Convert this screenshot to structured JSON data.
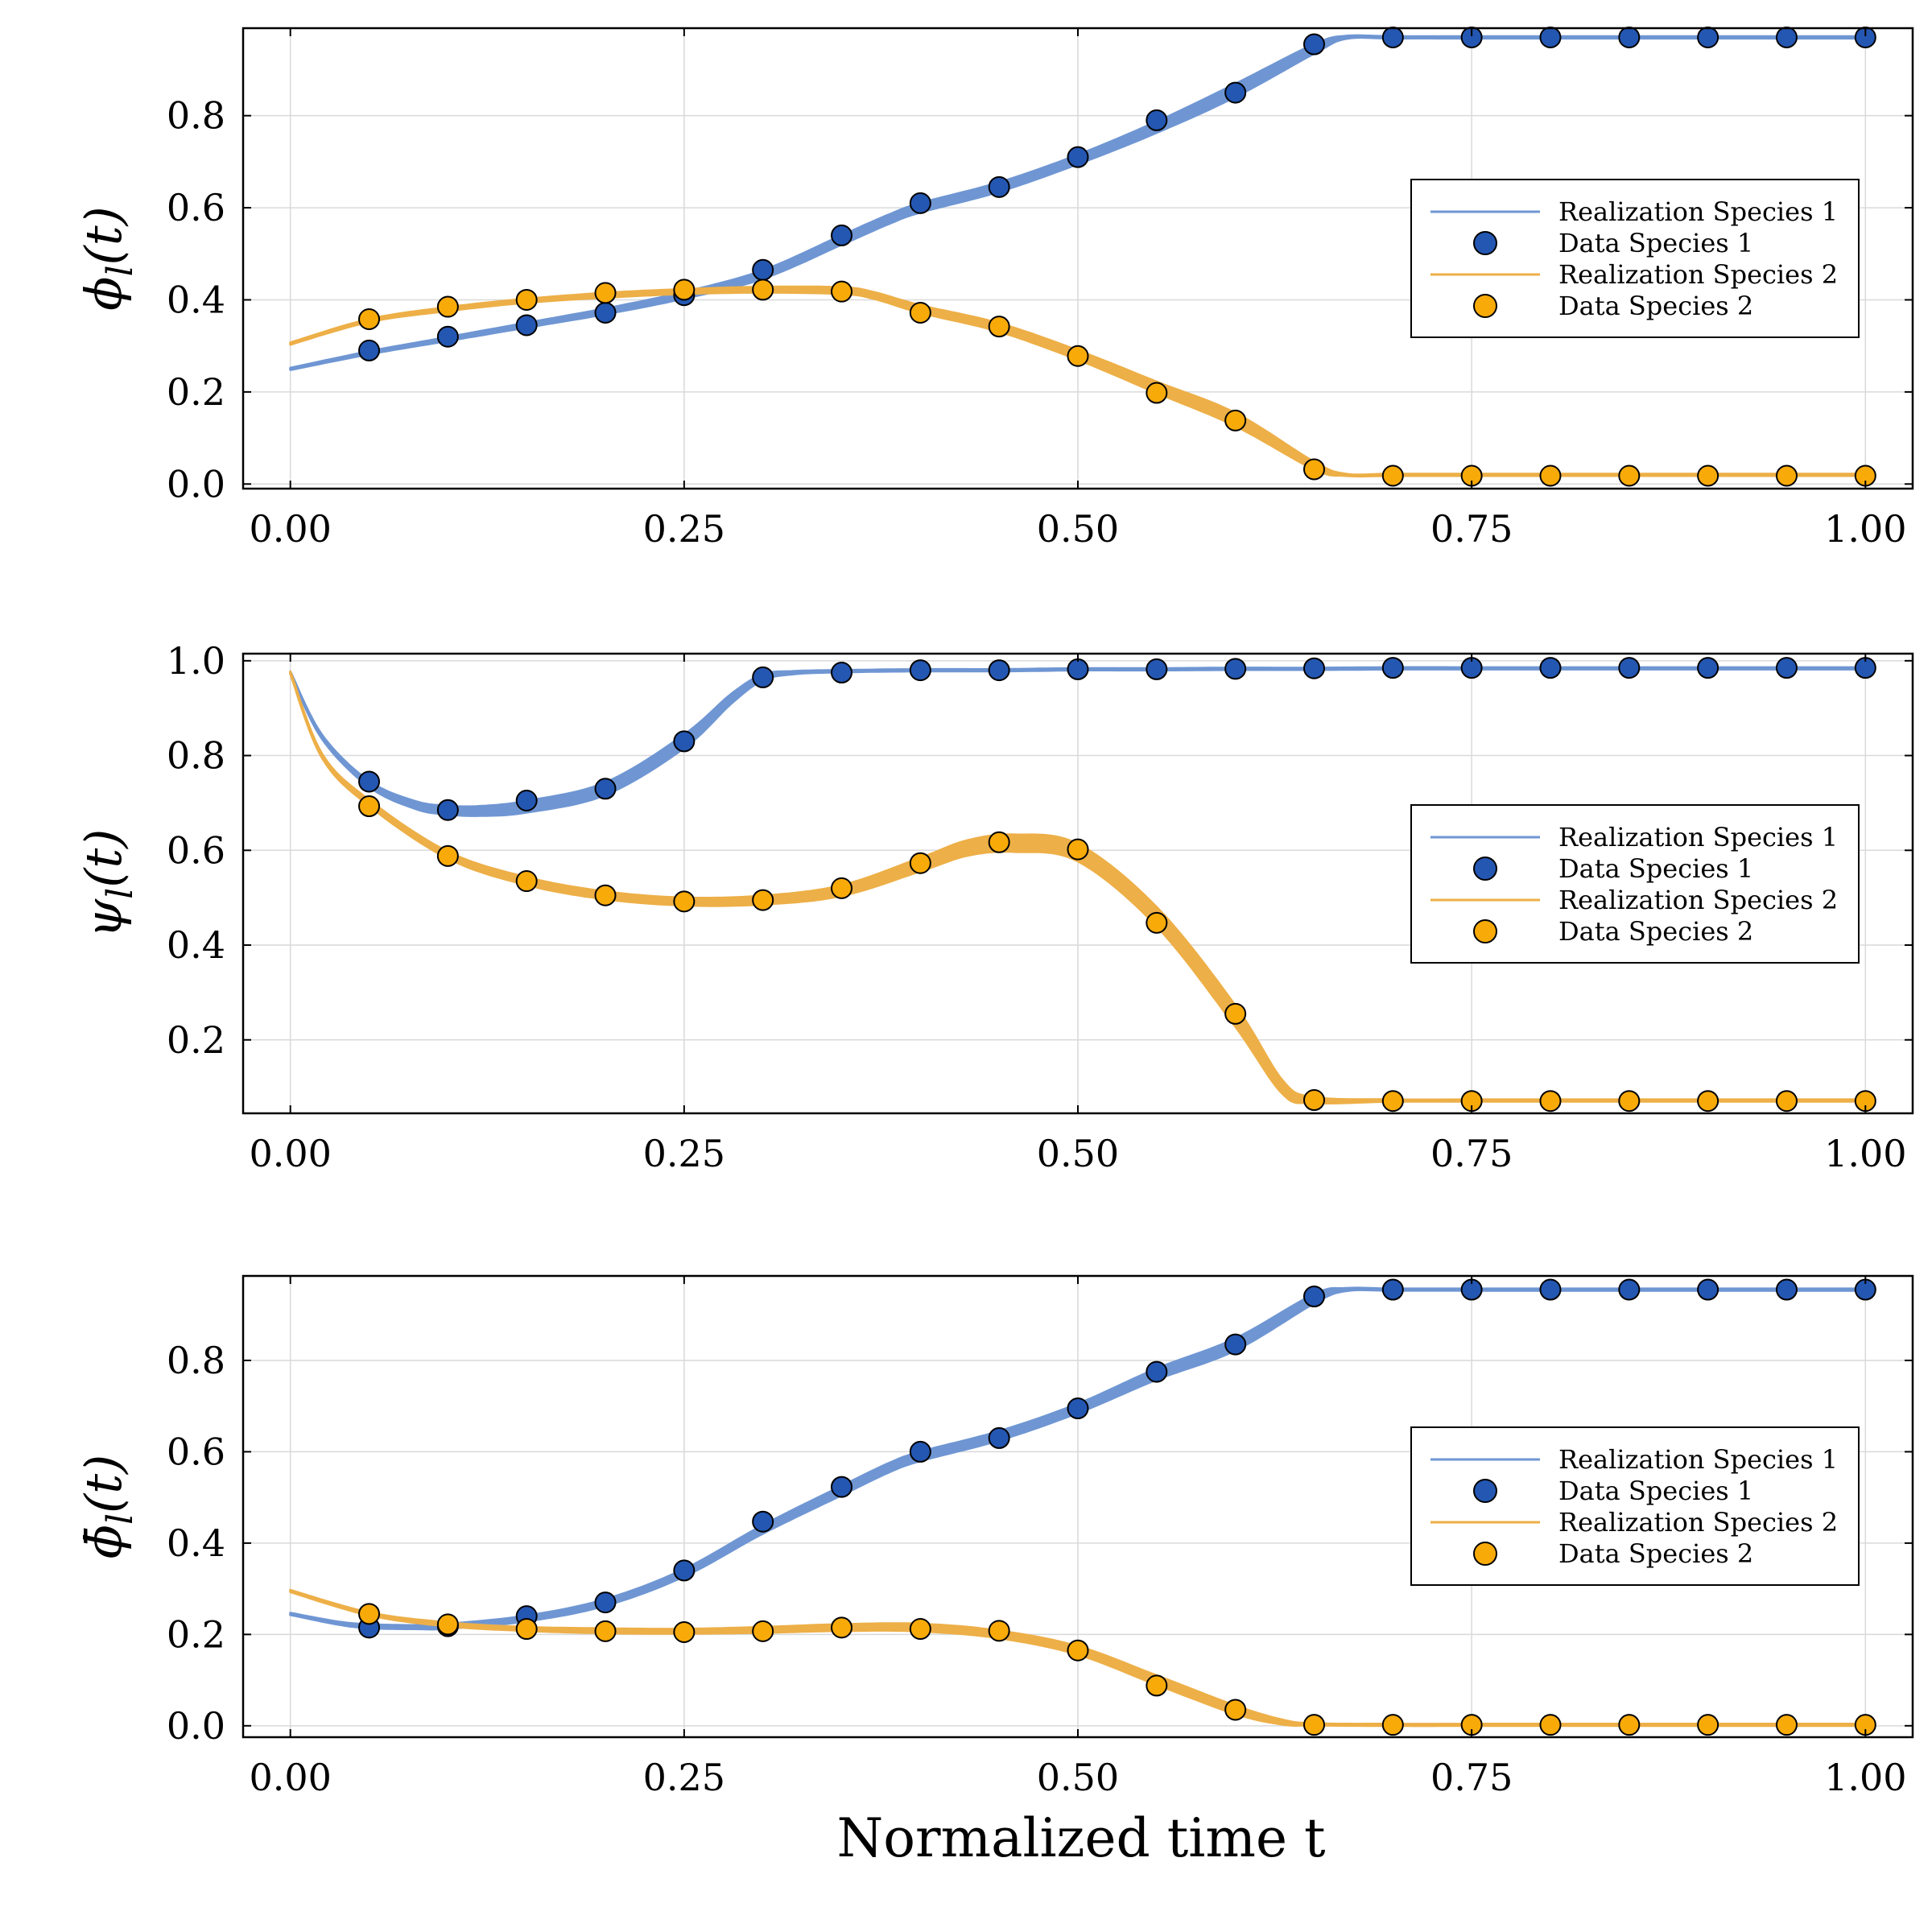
{
  "figure": {
    "xlabel": "Normalized time t",
    "colors": {
      "series1_line": "#6f96d3",
      "series1_marker": "#2457b2",
      "series2_line": "#edaf47",
      "series2_marker": "#f8aa08",
      "grid": "#d9d9d9",
      "frame": "#000000"
    }
  },
  "chart_data": [
    {
      "type": "line",
      "ylabel": "ϕ_l(t)",
      "xlim": [
        -0.03,
        1.03
      ],
      "ylim": [
        -0.01,
        0.99
      ],
      "xticks": [
        0.0,
        0.25,
        0.5,
        0.75,
        1.0
      ],
      "xtick_labels": [
        "0.00",
        "0.25",
        "0.50",
        "0.75",
        "1.00"
      ],
      "yticks": [
        0.0,
        0.2,
        0.4,
        0.6,
        0.8
      ],
      "ytick_labels": [
        "0.0",
        "0.2",
        "0.4",
        "0.6",
        "0.8"
      ],
      "grid": true,
      "legend": {
        "placement": "right",
        "entries": [
          "Realization Species 1",
          "Data Species 1",
          "Realization Species 2",
          "Data Species 2"
        ]
      },
      "series": [
        {
          "name": "Realization Species 1",
          "kind": "band",
          "x": [
            0,
            0.05,
            0.1,
            0.15,
            0.2,
            0.25,
            0.3,
            0.35,
            0.38,
            0.4,
            0.45,
            0.5,
            0.55,
            0.6,
            0.65,
            0.67,
            0.7,
            0.75,
            0.8,
            0.85,
            0.9,
            0.95,
            1.0
          ],
          "y": [
            0.25,
            0.285,
            0.315,
            0.345,
            0.375,
            0.41,
            0.455,
            0.53,
            0.575,
            0.6,
            0.645,
            0.705,
            0.775,
            0.855,
            0.945,
            0.97,
            0.97,
            0.97,
            0.97,
            0.97,
            0.97,
            0.97,
            0.97
          ],
          "spread": [
            0.002,
            0.003,
            0.004,
            0.005,
            0.006,
            0.007,
            0.009,
            0.01,
            0.01,
            0.01,
            0.01,
            0.01,
            0.012,
            0.014,
            0.01,
            0.003,
            0.002,
            0.002,
            0.002,
            0.002,
            0.002,
            0.002,
            0.002
          ]
        },
        {
          "name": "Data Species 1",
          "kind": "markers",
          "x": [
            0.05,
            0.1,
            0.15,
            0.2,
            0.25,
            0.3,
            0.35,
            0.4,
            0.45,
            0.5,
            0.55,
            0.6,
            0.65,
            0.7,
            0.75,
            0.8,
            0.85,
            0.9,
            0.95,
            1.0
          ],
          "y": [
            0.29,
            0.32,
            0.345,
            0.372,
            0.41,
            0.465,
            0.54,
            0.61,
            0.645,
            0.71,
            0.79,
            0.85,
            0.955,
            0.97,
            0.97,
            0.97,
            0.97,
            0.97,
            0.97,
            0.97
          ]
        },
        {
          "name": "Realization Species 2",
          "kind": "band",
          "x": [
            0,
            0.05,
            0.1,
            0.15,
            0.2,
            0.25,
            0.3,
            0.35,
            0.37,
            0.4,
            0.45,
            0.5,
            0.55,
            0.6,
            0.65,
            0.67,
            0.7,
            0.75,
            0.8,
            0.85,
            0.9,
            0.95,
            1.0
          ],
          "y": [
            0.305,
            0.355,
            0.38,
            0.398,
            0.41,
            0.418,
            0.422,
            0.42,
            0.41,
            0.38,
            0.34,
            0.28,
            0.21,
            0.14,
            0.04,
            0.02,
            0.02,
            0.02,
            0.02,
            0.02,
            0.02,
            0.02,
            0.02
          ],
          "spread": [
            0.002,
            0.003,
            0.004,
            0.004,
            0.005,
            0.005,
            0.006,
            0.007,
            0.007,
            0.008,
            0.009,
            0.01,
            0.012,
            0.014,
            0.008,
            0.002,
            0.002,
            0.002,
            0.002,
            0.002,
            0.002,
            0.002,
            0.002
          ]
        },
        {
          "name": "Data Species 2",
          "kind": "markers",
          "x": [
            0.05,
            0.1,
            0.15,
            0.2,
            0.25,
            0.3,
            0.35,
            0.4,
            0.45,
            0.5,
            0.55,
            0.6,
            0.65,
            0.7,
            0.75,
            0.8,
            0.85,
            0.9,
            0.95,
            1.0
          ],
          "y": [
            0.358,
            0.385,
            0.4,
            0.415,
            0.422,
            0.422,
            0.418,
            0.372,
            0.342,
            0.278,
            0.198,
            0.138,
            0.032,
            0.018,
            0.018,
            0.018,
            0.018,
            0.018,
            0.018,
            0.018
          ]
        }
      ]
    },
    {
      "type": "line",
      "ylabel": "ψ_l(t)",
      "xlim": [
        -0.03,
        1.03
      ],
      "ylim": [
        0.045,
        1.015
      ],
      "xticks": [
        0.0,
        0.25,
        0.5,
        0.75,
        1.0
      ],
      "xtick_labels": [
        "0.00",
        "0.25",
        "0.50",
        "0.75",
        "1.00"
      ],
      "yticks": [
        0.2,
        0.4,
        0.6,
        0.8,
        1.0
      ],
      "ytick_labels": [
        "0.2",
        "0.4",
        "0.6",
        "0.8",
        "1.0"
      ],
      "grid": true,
      "legend": {
        "placement": "right",
        "entries": [
          "Realization Species 1",
          "Data Species 1",
          "Realization Species 2",
          "Data Species 2"
        ]
      },
      "series": [
        {
          "name": "Realization Species 1",
          "kind": "band",
          "x": [
            0,
            0.02,
            0.05,
            0.08,
            0.1,
            0.12,
            0.15,
            0.2,
            0.25,
            0.28,
            0.3,
            0.32,
            0.35,
            0.4,
            0.45,
            0.5,
            0.55,
            0.6,
            0.65,
            0.7,
            0.75,
            0.8,
            0.85,
            0.9,
            0.95,
            1.0
          ],
          "y": [
            0.975,
            0.84,
            0.74,
            0.695,
            0.685,
            0.683,
            0.692,
            0.73,
            0.83,
            0.92,
            0.965,
            0.975,
            0.978,
            0.98,
            0.98,
            0.982,
            0.982,
            0.983,
            0.983,
            0.984,
            0.984,
            0.984,
            0.984,
            0.984,
            0.984,
            0.984
          ],
          "spread": [
            0.002,
            0.004,
            0.006,
            0.008,
            0.009,
            0.01,
            0.012,
            0.013,
            0.014,
            0.01,
            0.006,
            0.003,
            0.002,
            0.002,
            0.002,
            0.002,
            0.002,
            0.002,
            0.002,
            0.002,
            0.002,
            0.002,
            0.002,
            0.002,
            0.002,
            0.002
          ]
        },
        {
          "name": "Data Species 1",
          "kind": "markers",
          "x": [
            0.05,
            0.1,
            0.15,
            0.2,
            0.25,
            0.3,
            0.35,
            0.4,
            0.45,
            0.5,
            0.55,
            0.6,
            0.65,
            0.7,
            0.75,
            0.8,
            0.85,
            0.9,
            0.95,
            1.0
          ],
          "y": [
            0.745,
            0.685,
            0.705,
            0.73,
            0.83,
            0.965,
            0.975,
            0.98,
            0.98,
            0.982,
            0.982,
            0.983,
            0.984,
            0.985,
            0.985,
            0.985,
            0.985,
            0.985,
            0.985,
            0.985
          ]
        },
        {
          "name": "Realization Species 2",
          "kind": "band",
          "x": [
            0,
            0.02,
            0.05,
            0.1,
            0.15,
            0.2,
            0.25,
            0.3,
            0.35,
            0.4,
            0.43,
            0.46,
            0.5,
            0.55,
            0.6,
            0.63,
            0.65,
            0.7,
            0.75,
            0.8,
            0.85,
            0.9,
            0.95,
            1.0
          ],
          "y": [
            0.975,
            0.8,
            0.7,
            0.59,
            0.535,
            0.505,
            0.492,
            0.495,
            0.515,
            0.57,
            0.605,
            0.615,
            0.595,
            0.46,
            0.25,
            0.1,
            0.073,
            0.072,
            0.072,
            0.072,
            0.072,
            0.072,
            0.072,
            0.072
          ],
          "spread": [
            0.002,
            0.004,
            0.006,
            0.007,
            0.008,
            0.008,
            0.008,
            0.009,
            0.011,
            0.014,
            0.016,
            0.018,
            0.018,
            0.02,
            0.022,
            0.014,
            0.006,
            0.002,
            0.002,
            0.002,
            0.002,
            0.002,
            0.002,
            0.002
          ]
        },
        {
          "name": "Data Species 2",
          "kind": "markers",
          "x": [
            0.05,
            0.1,
            0.15,
            0.2,
            0.25,
            0.3,
            0.35,
            0.4,
            0.45,
            0.5,
            0.55,
            0.6,
            0.65,
            0.7,
            0.75,
            0.8,
            0.85,
            0.9,
            0.95,
            1.0
          ],
          "y": [
            0.693,
            0.588,
            0.535,
            0.505,
            0.492,
            0.495,
            0.52,
            0.573,
            0.617,
            0.602,
            0.447,
            0.255,
            0.073,
            0.071,
            0.071,
            0.071,
            0.071,
            0.071,
            0.071,
            0.071
          ]
        }
      ]
    },
    {
      "type": "line",
      "ylabel": "ϕ̄_l(t)",
      "xlim": [
        -0.03,
        1.03
      ],
      "ylim": [
        -0.025,
        0.985
      ],
      "xticks": [
        0.0,
        0.25,
        0.5,
        0.75,
        1.0
      ],
      "xtick_labels": [
        "0.00",
        "0.25",
        "0.50",
        "0.75",
        "1.00"
      ],
      "yticks": [
        0.0,
        0.2,
        0.4,
        0.6,
        0.8
      ],
      "ytick_labels": [
        "0.0",
        "0.2",
        "0.4",
        "0.6",
        "0.8"
      ],
      "grid": true,
      "legend": {
        "placement": "right",
        "entries": [
          "Realization Species 1",
          "Data Species 1",
          "Realization Species 2",
          "Data Species 2"
        ]
      },
      "series": [
        {
          "name": "Realization Species 1",
          "kind": "band",
          "x": [
            0,
            0.03,
            0.05,
            0.08,
            0.1,
            0.15,
            0.2,
            0.25,
            0.3,
            0.35,
            0.38,
            0.4,
            0.45,
            0.5,
            0.55,
            0.6,
            0.65,
            0.67,
            0.7,
            0.75,
            0.8,
            0.85,
            0.9,
            0.95,
            1.0
          ],
          "y": [
            0.245,
            0.225,
            0.218,
            0.216,
            0.218,
            0.235,
            0.27,
            0.335,
            0.43,
            0.515,
            0.565,
            0.59,
            0.635,
            0.695,
            0.77,
            0.835,
            0.935,
            0.955,
            0.955,
            0.955,
            0.955,
            0.955,
            0.955,
            0.955,
            0.955
          ],
          "spread": [
            0.002,
            0.003,
            0.004,
            0.004,
            0.005,
            0.006,
            0.007,
            0.008,
            0.009,
            0.01,
            0.01,
            0.01,
            0.01,
            0.01,
            0.012,
            0.013,
            0.01,
            0.003,
            0.002,
            0.002,
            0.002,
            0.002,
            0.002,
            0.002,
            0.002
          ]
        },
        {
          "name": "Data Species 1",
          "kind": "markers",
          "x": [
            0.05,
            0.1,
            0.15,
            0.2,
            0.25,
            0.3,
            0.35,
            0.4,
            0.45,
            0.5,
            0.55,
            0.6,
            0.65,
            0.7,
            0.75,
            0.8,
            0.85,
            0.9,
            0.95,
            1.0
          ],
          "y": [
            0.215,
            0.218,
            0.24,
            0.27,
            0.34,
            0.447,
            0.523,
            0.6,
            0.63,
            0.695,
            0.775,
            0.835,
            0.94,
            0.955,
            0.955,
            0.955,
            0.955,
            0.955,
            0.955,
            0.955
          ]
        },
        {
          "name": "Realization Species 2",
          "kind": "band",
          "x": [
            0,
            0.05,
            0.1,
            0.15,
            0.2,
            0.25,
            0.3,
            0.35,
            0.4,
            0.45,
            0.5,
            0.55,
            0.6,
            0.63,
            0.65,
            0.7,
            0.75,
            0.8,
            0.85,
            0.9,
            0.95,
            1.0
          ],
          "y": [
            0.295,
            0.245,
            0.222,
            0.212,
            0.208,
            0.207,
            0.21,
            0.215,
            0.215,
            0.2,
            0.165,
            0.1,
            0.035,
            0.008,
            0.003,
            0.002,
            0.002,
            0.002,
            0.002,
            0.002,
            0.002,
            0.002
          ],
          "spread": [
            0.002,
            0.003,
            0.004,
            0.004,
            0.005,
            0.005,
            0.006,
            0.007,
            0.008,
            0.008,
            0.009,
            0.01,
            0.009,
            0.005,
            0.002,
            0.002,
            0.002,
            0.002,
            0.002,
            0.002,
            0.002,
            0.002
          ]
        },
        {
          "name": "Data Species 2",
          "kind": "markers",
          "x": [
            0.05,
            0.1,
            0.15,
            0.2,
            0.25,
            0.3,
            0.35,
            0.4,
            0.45,
            0.5,
            0.55,
            0.6,
            0.65,
            0.7,
            0.75,
            0.8,
            0.85,
            0.9,
            0.95,
            1.0
          ],
          "y": [
            0.245,
            0.222,
            0.212,
            0.207,
            0.205,
            0.207,
            0.215,
            0.212,
            0.208,
            0.165,
            0.088,
            0.035,
            0.002,
            0.002,
            0.002,
            0.002,
            0.002,
            0.002,
            0.002,
            0.002
          ]
        }
      ]
    }
  ]
}
